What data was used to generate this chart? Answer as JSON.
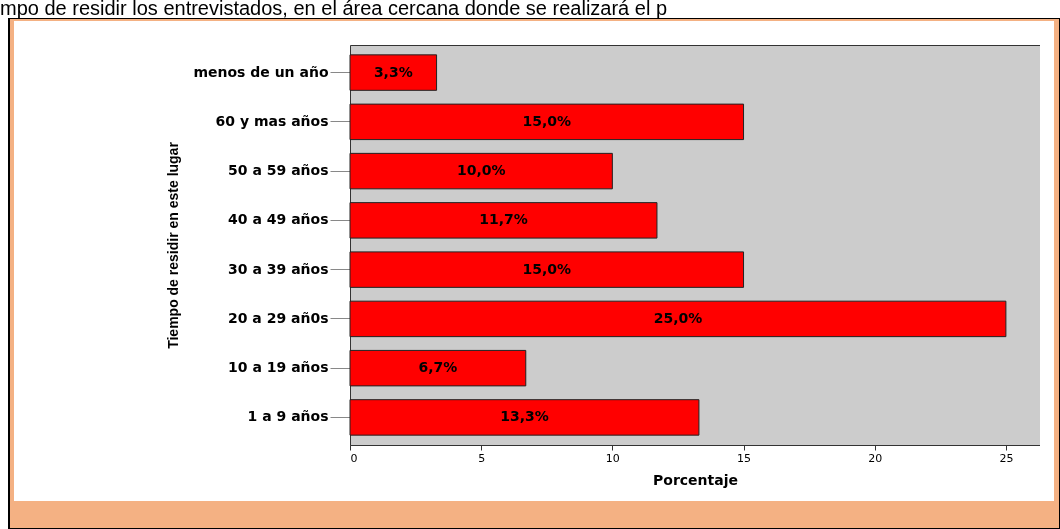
{
  "chart_data": {
    "type": "bar",
    "orientation": "horizontal",
    "title": "mpo de residir los entrevistados, en el área cercana donde se realizará el p",
    "xlabel": "Porcentaje",
    "ylabel": "Tiempo de residir en este lugar",
    "categories": [
      "menos de un año",
      "60 y mas años",
      "50 a 59 años",
      "40 a 49 años",
      "30 a 39 años",
      "20 a 29 añ0s",
      "10 a 19 años",
      "1 a  9 años"
    ],
    "values": [
      3.3,
      15.0,
      10.0,
      11.7,
      15.0,
      25.0,
      6.7,
      13.3
    ],
    "value_labels": [
      "3,3%",
      "15,0%",
      "10,0%",
      "11,7%",
      "15,0%",
      "25,0%",
      "6,7%",
      "13,3%"
    ],
    "color": "#ff0000",
    "xlim": [
      0,
      26.3
    ],
    "xticks": [
      0,
      5,
      10,
      15,
      20,
      25
    ],
    "grid": false
  }
}
